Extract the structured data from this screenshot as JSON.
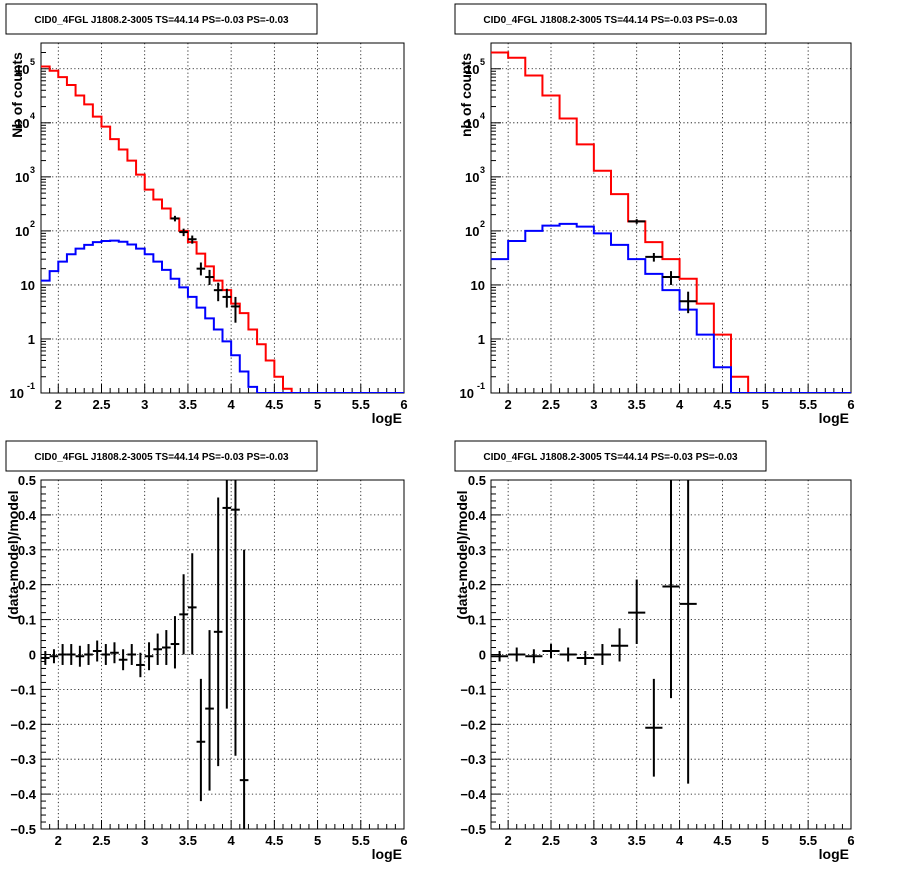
{
  "panel_title": "CID0_4FGL J1808.2-3005 TS=44.14 PS=-0.03 PS=-0.03",
  "colors": {
    "model": "#ff0000",
    "source": "#0000ff",
    "data": "#000000",
    "grid": "#000000"
  },
  "chart_data": [
    {
      "type": "line",
      "title": "CID0_4FGL J1808.2-3005 TS=44.14 PS=-0.03 PS=-0.03",
      "xlabel": "logE",
      "ylabel": "Nb of counts",
      "scale_y": "log",
      "xlim": [
        1.8,
        6.0
      ],
      "ylim": [
        0.1,
        300000
      ],
      "grid": true,
      "xticks": [
        2,
        2.5,
        3,
        3.5,
        4,
        4.5,
        5,
        5.5,
        6
      ],
      "yticks": [
        {
          "value": 0.1,
          "mant": "10",
          "exp": "-1"
        },
        {
          "value": 1,
          "mant": "1",
          "exp": ""
        },
        {
          "value": 10,
          "mant": "10",
          "exp": ""
        },
        {
          "value": 100,
          "mant": "10",
          "exp": "2"
        },
        {
          "value": 1000,
          "mant": "10",
          "exp": "3"
        },
        {
          "value": 10000,
          "mant": "10",
          "exp": "4"
        },
        {
          "value": 100000,
          "mant": "10",
          "exp": "5"
        }
      ],
      "bin_edges": [
        1.8,
        1.9,
        2.0,
        2.1,
        2.2,
        2.3,
        2.4,
        2.5,
        2.6,
        2.7,
        2.8,
        2.9,
        3.0,
        3.1,
        3.2,
        3.3,
        3.4,
        3.5,
        3.6,
        3.7,
        3.8,
        3.9,
        4.0,
        4.1,
        4.2,
        4.3,
        4.4,
        4.5,
        4.6,
        4.7,
        4.8,
        4.9,
        5.0,
        5.1,
        5.2,
        5.3,
        5.4,
        5.5,
        5.6,
        5.7,
        5.8,
        5.9,
        6.0
      ],
      "series": [
        {
          "style": "model",
          "values": [
            110000,
            92000,
            70000,
            50000,
            32000,
            22000,
            13000,
            8500,
            5000,
            3200,
            2000,
            1100,
            580,
            380,
            260,
            170,
            100,
            62,
            38,
            22,
            12,
            8,
            4.5,
            3,
            1.5,
            0.8,
            0.4,
            0.2,
            0.12,
            0.1,
            0.1,
            0.1,
            0.1,
            0.1,
            0.1,
            0.1,
            0.1,
            0.1,
            0.1,
            0.1,
            0.1,
            0.1
          ]
        },
        {
          "style": "source",
          "values": [
            12,
            18,
            27,
            37,
            47,
            55,
            62,
            65,
            66,
            63,
            56,
            47,
            37,
            27,
            19,
            13,
            9,
            6,
            3.8,
            2.4,
            1.5,
            0.9,
            0.5,
            0.25,
            0.13,
            0.1,
            0.1,
            0.1,
            0.1,
            0.1,
            0.1,
            0.1,
            0.1,
            0.1,
            0.1,
            0.1,
            0.1,
            0.1,
            0.1,
            0.1,
            0.1,
            0.1
          ]
        }
      ],
      "points": [
        {
          "x": 3.35,
          "y": 170,
          "lo": 150,
          "hi": 190,
          "xe": 0.05
        },
        {
          "x": 3.45,
          "y": 95,
          "lo": 80,
          "hi": 110,
          "xe": 0.05
        },
        {
          "x": 3.55,
          "y": 70,
          "lo": 58,
          "hi": 82,
          "xe": 0.05
        },
        {
          "x": 3.65,
          "y": 20,
          "lo": 15,
          "hi": 26,
          "xe": 0.05
        },
        {
          "x": 3.75,
          "y": 14,
          "lo": 10,
          "hi": 19,
          "xe": 0.05
        },
        {
          "x": 3.85,
          "y": 8,
          "lo": 5,
          "hi": 11,
          "xe": 0.05
        },
        {
          "x": 3.95,
          "y": 6,
          "lo": 3.8,
          "hi": 8.5,
          "xe": 0.05
        },
        {
          "x": 4.05,
          "y": 4,
          "lo": 2,
          "hi": 6,
          "xe": 0.05
        }
      ]
    },
    {
      "type": "line",
      "title": "CID0_4FGL J1808.2-3005 TS=44.14 PS=-0.03 PS=-0.03",
      "xlabel": "logE",
      "ylabel": "nb of counts",
      "scale_y": "log",
      "xlim": [
        1.8,
        6.0
      ],
      "ylim": [
        0.1,
        300000
      ],
      "grid": true,
      "xticks": [
        2,
        2.5,
        3,
        3.5,
        4,
        4.5,
        5,
        5.5,
        6
      ],
      "yticks": [
        {
          "value": 0.1,
          "mant": "10",
          "exp": "-1"
        },
        {
          "value": 1,
          "mant": "1",
          "exp": ""
        },
        {
          "value": 10,
          "mant": "10",
          "exp": ""
        },
        {
          "value": 100,
          "mant": "10",
          "exp": "2"
        },
        {
          "value": 1000,
          "mant": "10",
          "exp": "3"
        },
        {
          "value": 10000,
          "mant": "10",
          "exp": "4"
        },
        {
          "value": 100000,
          "mant": "10",
          "exp": "5"
        }
      ],
      "bin_edges": [
        1.8,
        2.0,
        2.2,
        2.4,
        2.6,
        2.8,
        3.0,
        3.2,
        3.4,
        3.6,
        3.8,
        4.0,
        4.2,
        4.4,
        4.6,
        4.8,
        5.0,
        5.2,
        5.4,
        5.6,
        5.8,
        6.0
      ],
      "series": [
        {
          "style": "model",
          "values": [
            200000,
            160000,
            75000,
            32000,
            12000,
            4000,
            1300,
            480,
            150,
            62,
            30,
            13,
            4.5,
            1.2,
            0.2,
            0.1,
            0.1,
            0.1,
            0.1,
            0.1,
            0.1
          ]
        },
        {
          "style": "source",
          "values": [
            30,
            65,
            100,
            125,
            135,
            120,
            90,
            55,
            30,
            16,
            8,
            3.5,
            1.2,
            0.3,
            0.1,
            0.1,
            0.1,
            0.1,
            0.1,
            0.1,
            0.1
          ]
        }
      ],
      "points": [
        {
          "x": 3.5,
          "y": 150,
          "lo": 135,
          "hi": 165,
          "xe": 0.1
        },
        {
          "x": 3.7,
          "y": 33,
          "lo": 27,
          "hi": 39,
          "xe": 0.1
        },
        {
          "x": 3.9,
          "y": 14,
          "lo": 10,
          "hi": 18,
          "xe": 0.1
        },
        {
          "x": 4.1,
          "y": 5,
          "lo": 3,
          "hi": 7.5,
          "xe": 0.1
        }
      ]
    },
    {
      "type": "scatter",
      "title": "CID0_4FGL J1808.2-3005 TS=44.14 PS=-0.03 PS=-0.03",
      "xlabel": "logE",
      "ylabel": "(data-model)/model",
      "scale_y": "linear",
      "xlim": [
        1.8,
        6.0
      ],
      "ylim": [
        -0.5,
        0.5
      ],
      "grid": true,
      "xticks": [
        2,
        2.5,
        3,
        3.5,
        4,
        4.5,
        5,
        5.5,
        6
      ],
      "yticks": [
        {
          "value": -0.5,
          "label": "−0.5"
        },
        {
          "value": -0.4,
          "label": "−0.4"
        },
        {
          "value": -0.3,
          "label": "−0.3"
        },
        {
          "value": -0.2,
          "label": "−0.2"
        },
        {
          "value": -0.1,
          "label": "−0.1"
        },
        {
          "value": 0,
          "label": "0"
        },
        {
          "value": 0.1,
          "label": "0.1"
        },
        {
          "value": 0.2,
          "label": "0.2"
        },
        {
          "value": 0.3,
          "label": "0.3"
        },
        {
          "value": 0.4,
          "label": "0.4"
        },
        {
          "value": 0.5,
          "label": "0.5"
        }
      ],
      "points": [
        {
          "x": 1.85,
          "y": -0.01,
          "lo": -0.03,
          "hi": 0.01,
          "xe": 0.05
        },
        {
          "x": 1.95,
          "y": -0.005,
          "lo": -0.025,
          "hi": 0.015,
          "xe": 0.05
        },
        {
          "x": 2.05,
          "y": 0.0,
          "lo": -0.03,
          "hi": 0.03,
          "xe": 0.05
        },
        {
          "x": 2.15,
          "y": 0.0,
          "lo": -0.03,
          "hi": 0.03,
          "xe": 0.05
        },
        {
          "x": 2.25,
          "y": -0.005,
          "lo": -0.035,
          "hi": 0.025,
          "xe": 0.05
        },
        {
          "x": 2.35,
          "y": 0.0,
          "lo": -0.03,
          "hi": 0.03,
          "xe": 0.05
        },
        {
          "x": 2.45,
          "y": 0.01,
          "lo": -0.02,
          "hi": 0.04,
          "xe": 0.05
        },
        {
          "x": 2.55,
          "y": 0.0,
          "lo": -0.03,
          "hi": 0.03,
          "xe": 0.05
        },
        {
          "x": 2.65,
          "y": 0.005,
          "lo": -0.025,
          "hi": 0.035,
          "xe": 0.05
        },
        {
          "x": 2.75,
          "y": -0.015,
          "lo": -0.045,
          "hi": 0.015,
          "xe": 0.05
        },
        {
          "x": 2.85,
          "y": 0.0,
          "lo": -0.03,
          "hi": 0.03,
          "xe": 0.05
        },
        {
          "x": 2.95,
          "y": -0.03,
          "lo": -0.065,
          "hi": 0.005,
          "xe": 0.05
        },
        {
          "x": 3.05,
          "y": -0.005,
          "lo": -0.045,
          "hi": 0.035,
          "xe": 0.05
        },
        {
          "x": 3.15,
          "y": 0.015,
          "lo": -0.03,
          "hi": 0.06,
          "xe": 0.05
        },
        {
          "x": 3.25,
          "y": 0.02,
          "lo": -0.03,
          "hi": 0.07,
          "xe": 0.05
        },
        {
          "x": 3.35,
          "y": 0.03,
          "lo": -0.04,
          "hi": 0.11,
          "xe": 0.05
        },
        {
          "x": 3.45,
          "y": 0.115,
          "lo": 0.0,
          "hi": 0.23,
          "xe": 0.05
        },
        {
          "x": 3.55,
          "y": 0.135,
          "lo": 0.0,
          "hi": 0.29,
          "xe": 0.05
        },
        {
          "x": 3.65,
          "y": -0.25,
          "lo": -0.42,
          "hi": -0.07,
          "xe": 0.05
        },
        {
          "x": 3.75,
          "y": -0.155,
          "lo": -0.39,
          "hi": 0.07,
          "xe": 0.05
        },
        {
          "x": 3.85,
          "y": 0.065,
          "lo": -0.32,
          "hi": 0.45,
          "xe": 0.05
        },
        {
          "x": 3.95,
          "y": 0.42,
          "lo": -0.155,
          "hi": 0.5,
          "xe": 0.05
        },
        {
          "x": 4.05,
          "y": 0.415,
          "lo": -0.29,
          "hi": 0.5,
          "xe": 0.05
        },
        {
          "x": 4.15,
          "y": -0.36,
          "lo": -0.5,
          "hi": 0.3,
          "xe": 0.05
        }
      ]
    },
    {
      "type": "scatter",
      "title": "CID0_4FGL J1808.2-3005 TS=44.14 PS=-0.03 PS=-0.03",
      "xlabel": "logE",
      "ylabel": "(data-model)/model",
      "scale_y": "linear",
      "xlim": [
        1.8,
        6.0
      ],
      "ylim": [
        -0.5,
        0.5
      ],
      "grid": true,
      "xticks": [
        2,
        2.5,
        3,
        3.5,
        4,
        4.5,
        5,
        5.5,
        6
      ],
      "yticks": [
        {
          "value": -0.5,
          "label": "−0.5"
        },
        {
          "value": -0.4,
          "label": "−0.4"
        },
        {
          "value": -0.3,
          "label": "−0.3"
        },
        {
          "value": -0.2,
          "label": "−0.2"
        },
        {
          "value": -0.1,
          "label": "−0.1"
        },
        {
          "value": 0,
          "label": "0"
        },
        {
          "value": 0.1,
          "label": "0.1"
        },
        {
          "value": 0.2,
          "label": "0.2"
        },
        {
          "value": 0.3,
          "label": "0.3"
        },
        {
          "value": 0.4,
          "label": "0.4"
        },
        {
          "value": 0.5,
          "label": "0.5"
        }
      ],
      "points": [
        {
          "x": 1.9,
          "y": -0.005,
          "lo": -0.02,
          "hi": 0.01,
          "xe": 0.1
        },
        {
          "x": 2.1,
          "y": 0.0,
          "lo": -0.02,
          "hi": 0.02,
          "xe": 0.1
        },
        {
          "x": 2.3,
          "y": -0.005,
          "lo": -0.025,
          "hi": 0.015,
          "xe": 0.1
        },
        {
          "x": 2.5,
          "y": 0.01,
          "lo": -0.01,
          "hi": 0.03,
          "xe": 0.1
        },
        {
          "x": 2.7,
          "y": 0.0,
          "lo": -0.02,
          "hi": 0.02,
          "xe": 0.1
        },
        {
          "x": 2.9,
          "y": -0.01,
          "lo": -0.03,
          "hi": 0.01,
          "xe": 0.1
        },
        {
          "x": 3.1,
          "y": 0.0,
          "lo": -0.03,
          "hi": 0.03,
          "xe": 0.1
        },
        {
          "x": 3.3,
          "y": 0.025,
          "lo": -0.02,
          "hi": 0.075,
          "xe": 0.1
        },
        {
          "x": 3.5,
          "y": 0.12,
          "lo": 0.03,
          "hi": 0.215,
          "xe": 0.1
        },
        {
          "x": 3.7,
          "y": -0.21,
          "lo": -0.35,
          "hi": -0.07,
          "xe": 0.1
        },
        {
          "x": 3.9,
          "y": 0.195,
          "lo": -0.125,
          "hi": 0.5,
          "xe": 0.1
        },
        {
          "x": 4.1,
          "y": 0.145,
          "lo": -0.37,
          "hi": 0.5,
          "xe": 0.1
        }
      ]
    }
  ]
}
